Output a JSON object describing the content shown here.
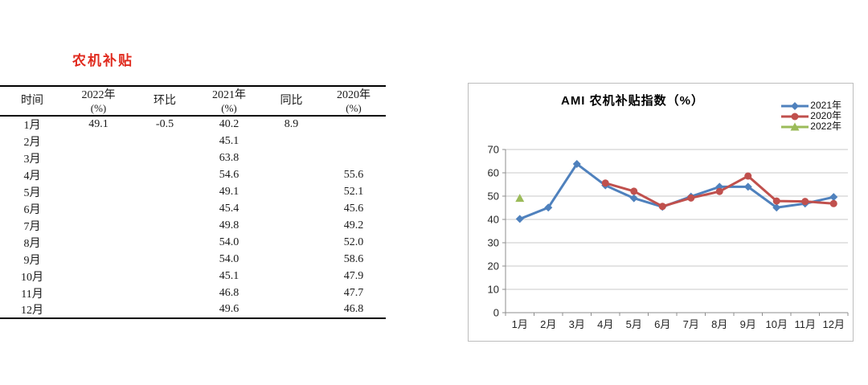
{
  "section": {
    "title": "农机补贴",
    "title_color": "#e02a1e"
  },
  "table": {
    "columns": [
      {
        "line1": "时间",
        "line2": ""
      },
      {
        "line1": "2022年",
        "line2": "(%)"
      },
      {
        "line1": "环比",
        "line2": ""
      },
      {
        "line1": "2021年",
        "line2": "(%)"
      },
      {
        "line1": "同比",
        "line2": ""
      },
      {
        "line1": "2020年",
        "line2": "(%)"
      }
    ],
    "rows": [
      [
        "1月",
        "49.1",
        "-0.5",
        "40.2",
        "8.9",
        ""
      ],
      [
        "2月",
        "",
        "",
        "45.1",
        "",
        ""
      ],
      [
        "3月",
        "",
        "",
        "63.8",
        "",
        ""
      ],
      [
        "4月",
        "",
        "",
        "54.6",
        "",
        "55.6"
      ],
      [
        "5月",
        "",
        "",
        "49.1",
        "",
        "52.1"
      ],
      [
        "6月",
        "",
        "",
        "45.4",
        "",
        "45.6"
      ],
      [
        "7月",
        "",
        "",
        "49.8",
        "",
        "49.2"
      ],
      [
        "8月",
        "",
        "",
        "54.0",
        "",
        "52.0"
      ],
      [
        "9月",
        "",
        "",
        "54.0",
        "",
        "58.6"
      ],
      [
        "10月",
        "",
        "",
        "45.1",
        "",
        "47.9"
      ],
      [
        "11月",
        "",
        "",
        "46.8",
        "",
        "47.7"
      ],
      [
        "12月",
        "",
        "",
        "49.6",
        "",
        "46.8"
      ]
    ]
  },
  "chart_data": {
    "type": "line",
    "title": "AMI 农机补贴指数（%）",
    "categories": [
      "1月",
      "2月",
      "3月",
      "4月",
      "5月",
      "6月",
      "7月",
      "8月",
      "9月",
      "10月",
      "11月",
      "12月"
    ],
    "series": [
      {
        "name": "2021年",
        "color": "#4F81BD",
        "marker": "diamond",
        "values": [
          40.2,
          45.1,
          63.8,
          54.6,
          49.1,
          45.4,
          49.8,
          54.0,
          54.0,
          45.1,
          46.8,
          49.6
        ]
      },
      {
        "name": "2020年",
        "color": "#C0504D",
        "marker": "circle",
        "values": [
          null,
          null,
          null,
          55.6,
          52.1,
          45.6,
          49.2,
          52.0,
          58.6,
          47.9,
          47.7,
          46.8
        ]
      },
      {
        "name": "2022年",
        "color": "#9BBB59",
        "marker": "triangle",
        "values": [
          49.1,
          null,
          null,
          null,
          null,
          null,
          null,
          null,
          null,
          null,
          null,
          null
        ]
      }
    ],
    "ylim": [
      0,
      70
    ],
    "ytick_step": 10,
    "grid": true,
    "legend_position": "top-right",
    "xlabel": "",
    "ylabel": ""
  },
  "chart_style": {
    "grid_color": "#c9c9c9",
    "axis_color": "#8c8c8c",
    "border_color": "#bdbdbd"
  }
}
